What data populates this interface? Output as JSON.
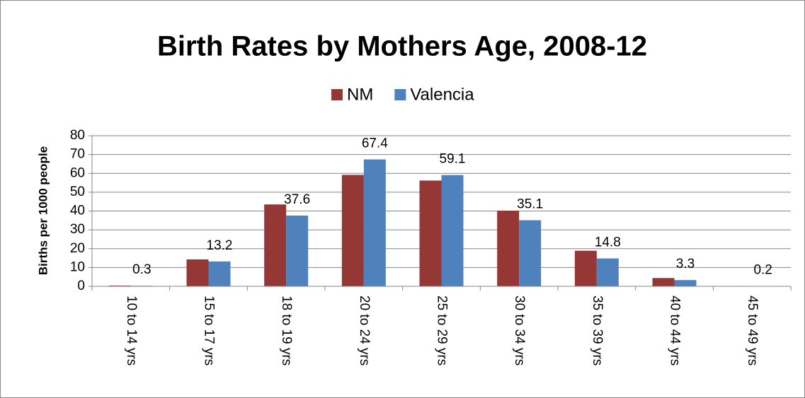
{
  "chart_data": {
    "type": "bar",
    "title": "Birth Rates by Mothers Age, 2008-12",
    "y_label": "Births per 1000 people",
    "categories": [
      "10 to 14 yrs",
      "15 to 17 yrs",
      "18 to 19 yrs",
      "20 to 24 yrs",
      "25 to 29 yrs",
      "30 to 34 yrs",
      "35 to 39 yrs",
      "40 to 44 yrs",
      "45 to 49 yrs"
    ],
    "series": [
      {
        "name": "NM",
        "color": "#953735",
        "values": [
          0.4,
          14.3,
          43.5,
          59.2,
          56.2,
          40.2,
          18.9,
          4.4,
          0.2
        ],
        "show_labels": false
      },
      {
        "name": "Valencia",
        "color": "#4f81bd",
        "values": [
          0.3,
          13.2,
          37.6,
          67.4,
          59.1,
          35.1,
          14.8,
          3.3,
          0.2
        ],
        "show_labels": true
      }
    ],
    "ylim": [
      0,
      80
    ],
    "yticks": [
      0,
      10,
      20,
      30,
      40,
      50,
      60,
      70,
      80
    ],
    "grid": true,
    "legend": "top"
  }
}
